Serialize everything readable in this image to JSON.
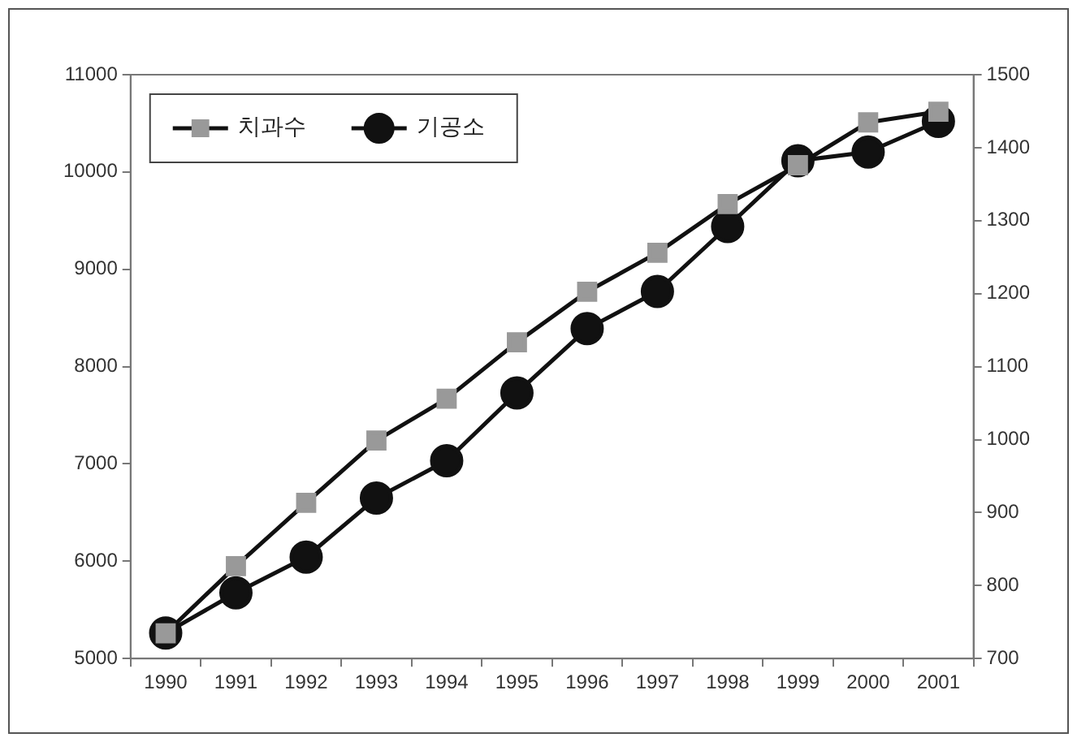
{
  "chart_data": {
    "type": "line",
    "categories": [
      "1990",
      "1991",
      "1992",
      "1993",
      "1994",
      "1995",
      "1996",
      "1997",
      "1998",
      "1999",
      "2000",
      "2001"
    ],
    "series": [
      {
        "name": "치과수",
        "color": "#999999",
        "marker": "square",
        "values": [
          5260,
          5950,
          6600,
          7240,
          7670,
          8250,
          8770,
          9170,
          9670,
          10070,
          10510,
          10620
        ]
      },
      {
        "name": "기공소",
        "color": "#111111",
        "marker": "circle",
        "axis": "y2",
        "values": [
          735,
          790,
          839,
          920,
          971,
          1064,
          1152,
          1203,
          1292,
          1382,
          1394,
          1436
        ]
      }
    ],
    "ylim": [
      5000,
      11000
    ],
    "yticks": [
      5000,
      6000,
      7000,
      8000,
      9000,
      10000,
      11000
    ],
    "y2lim": [
      700,
      1500
    ],
    "y2ticks": [
      700,
      800,
      900,
      1000,
      1100,
      1200,
      1300,
      1400,
      1500
    ],
    "grid": false,
    "legend": "top left",
    "line_style": "solid"
  }
}
